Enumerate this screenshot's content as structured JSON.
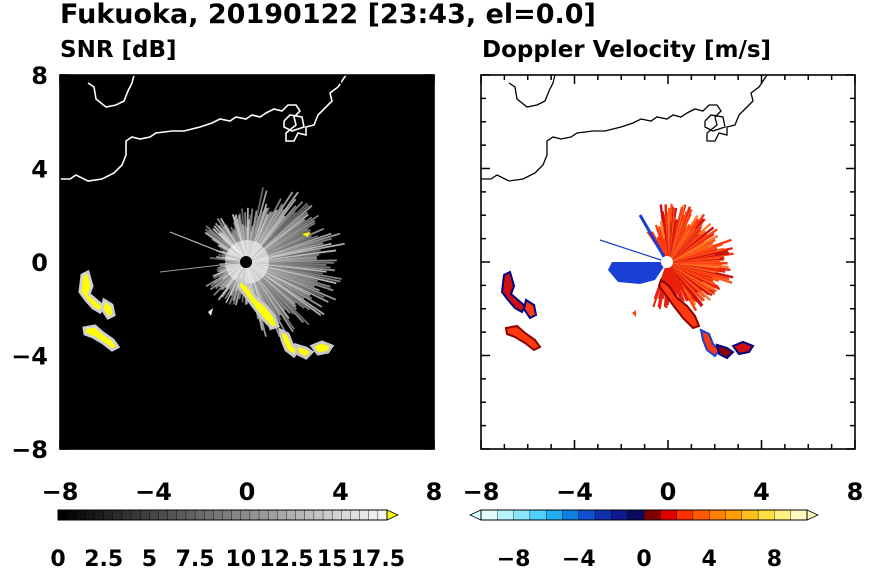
{
  "figure": {
    "title": "Fukuoka, 20190122 [23:43, el=0.0]"
  },
  "colors": {
    "snr_background": "#000000",
    "coastline_on_dark": "#ffffff",
    "coastline_on_light": "#000000",
    "echo_yellow": "#ffff00",
    "velocity_negative": "#1a3fd6",
    "velocity_positive": "#ff3a10",
    "velocity_edge_dark_red": "#8b0000",
    "velocity_edge_navy": "#000080"
  },
  "chart_data": [
    {
      "type": "heatmap",
      "title": "SNR [dB]",
      "xlabel": "",
      "ylabel": "",
      "xlim": [
        -8,
        8
      ],
      "ylim": [
        -8,
        8
      ],
      "x_ticks": [
        "−8",
        "−4",
        "0",
        "4",
        "8"
      ],
      "y_ticks": [
        "8",
        "4",
        "0",
        "−4",
        "−8"
      ],
      "grid": false,
      "radar_center": [
        0,
        0
      ],
      "colorbar": {
        "orientation": "horizontal",
        "range": [
          0,
          18
        ],
        "extend": "max",
        "tick_labels": [
          "0",
          "2.5",
          "5",
          "7.5",
          "10",
          "12.5",
          "15",
          "17.5"
        ],
        "colormap": "grayscale-to-yellow"
      }
    },
    {
      "type": "heatmap",
      "title": "Doppler Velocity [m/s]",
      "xlabel": "",
      "ylabel": "",
      "xlim": [
        -8,
        8
      ],
      "ylim": [
        -8,
        8
      ],
      "x_ticks": [
        "−8",
        "−4",
        "0",
        "4",
        "8"
      ],
      "grid": false,
      "radar_center": [
        0,
        0
      ],
      "colorbar": {
        "orientation": "horizontal",
        "range": [
          -10,
          10
        ],
        "extend": "both",
        "tick_labels": [
          "−8",
          "−4",
          "0",
          "4",
          "8"
        ],
        "colormap": "blue-white-red"
      }
    }
  ]
}
